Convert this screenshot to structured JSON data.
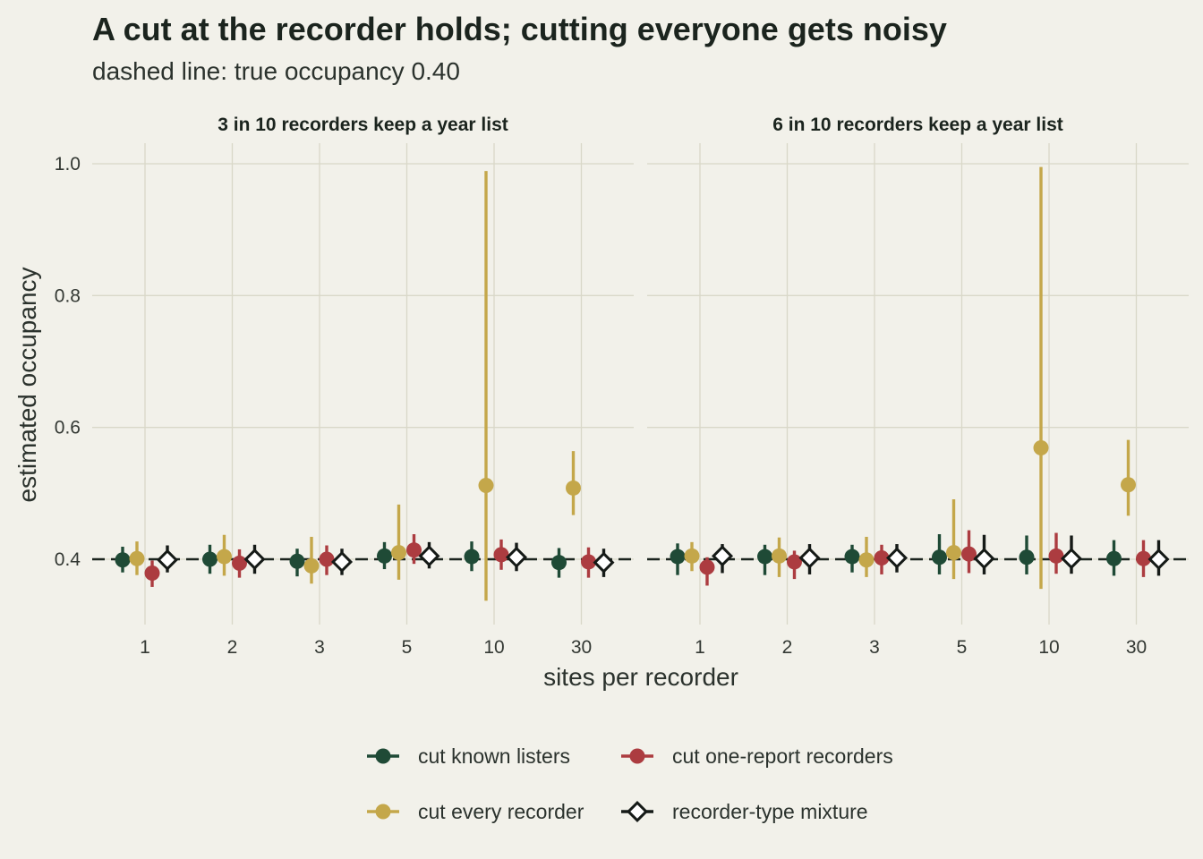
{
  "title": "A cut at the recorder holds; cutting everyone gets noisy",
  "subtitle": "dashed line: true occupancy 0.40",
  "colors": {
    "background": "#f2f1ea",
    "grid": "#d9d8c8",
    "cut_known_listers": "#1f4a36",
    "cut_every_recorder": "#c4a74a",
    "cut_one_report_recorders": "#ac3c40",
    "recorder_type_mixture": "#151a17"
  },
  "chart_data": {
    "type": "scatter",
    "xlabel": "sites per recorder",
    "ylabel": "estimated occupancy",
    "categories": [
      "1",
      "2",
      "3",
      "5",
      "10",
      "30"
    ],
    "yticks": [
      "0.4",
      "0.6",
      "0.8",
      "1.0"
    ],
    "ylim": [
      0.32,
      1.02
    ],
    "reference_line": 0.4,
    "grid": true,
    "legend_position": "bottom",
    "legend": [
      {
        "key": "known",
        "label": "cut known listers",
        "shape": "circle"
      },
      {
        "key": "one",
        "label": "cut one-report recorders",
        "shape": "circle"
      },
      {
        "key": "every",
        "label": "cut every recorder",
        "shape": "circle"
      },
      {
        "key": "mix",
        "label": "recorder-type mixture",
        "shape": "diamond"
      }
    ],
    "panels": [
      {
        "title": "3 in 10 recorders keep a year list",
        "series": [
          {
            "key": "known",
            "name": "cut known listers",
            "values": [
              0.399,
              0.4,
              0.397,
              0.405,
              0.404,
              0.395
            ],
            "lower": [
              0.38,
              0.378,
              0.374,
              0.385,
              0.382,
              0.372
            ],
            "upper": [
              0.419,
              0.422,
              0.416,
              0.426,
              0.427,
              0.417
            ]
          },
          {
            "key": "every",
            "name": "cut every recorder",
            "values": [
              0.401,
              0.404,
              0.39,
              0.41,
              0.512,
              0.508
            ],
            "lower": [
              0.376,
              0.375,
              0.363,
              0.369,
              0.337,
              0.467
            ],
            "upper": [
              0.427,
              0.437,
              0.434,
              0.483,
              0.989,
              0.564
            ]
          },
          {
            "key": "one",
            "name": "cut one-report recorders",
            "values": [
              0.379,
              0.394,
              0.4,
              0.414,
              0.407,
              0.396
            ],
            "lower": [
              0.358,
              0.372,
              0.376,
              0.393,
              0.384,
              0.372
            ],
            "upper": [
              0.398,
              0.415,
              0.421,
              0.438,
              0.43,
              0.418
            ]
          },
          {
            "key": "mix",
            "name": "recorder-type mixture",
            "values": [
              0.399,
              0.4,
              0.396,
              0.405,
              0.403,
              0.395
            ],
            "lower": [
              0.38,
              0.378,
              0.376,
              0.386,
              0.382,
              0.373
            ],
            "upper": [
              0.421,
              0.422,
              0.416,
              0.426,
              0.425,
              0.416
            ]
          }
        ]
      },
      {
        "title": "6 in 10 recorders keep a year list",
        "series": [
          {
            "key": "known",
            "name": "cut known listers",
            "values": [
              0.404,
              0.404,
              0.404,
              0.403,
              0.403,
              0.401
            ],
            "lower": [
              0.376,
              0.376,
              0.38,
              0.377,
              0.377,
              0.375
            ],
            "upper": [
              0.424,
              0.422,
              0.422,
              0.438,
              0.436,
              0.429
            ]
          },
          {
            "key": "every",
            "name": "cut every recorder",
            "values": [
              0.405,
              0.405,
              0.399,
              0.41,
              0.569,
              0.513
            ],
            "lower": [
              0.382,
              0.373,
              0.373,
              0.37,
              0.355,
              0.466
            ],
            "upper": [
              0.426,
              0.433,
              0.434,
              0.491,
              0.995,
              0.581
            ]
          },
          {
            "key": "one",
            "name": "cut one-report recorders",
            "values": [
              0.388,
              0.396,
              0.402,
              0.408,
              0.405,
              0.401
            ],
            "lower": [
              0.36,
              0.37,
              0.377,
              0.379,
              0.378,
              0.373
            ],
            "upper": [
              0.403,
              0.413,
              0.422,
              0.444,
              0.44,
              0.429
            ]
          },
          {
            "key": "mix",
            "name": "recorder-type mixture",
            "values": [
              0.405,
              0.402,
              0.402,
              0.401,
              0.401,
              0.4
            ],
            "lower": [
              0.379,
              0.377,
              0.38,
              0.377,
              0.378,
              0.375
            ],
            "upper": [
              0.423,
              0.423,
              0.423,
              0.437,
              0.436,
              0.429
            ]
          }
        ]
      }
    ]
  }
}
